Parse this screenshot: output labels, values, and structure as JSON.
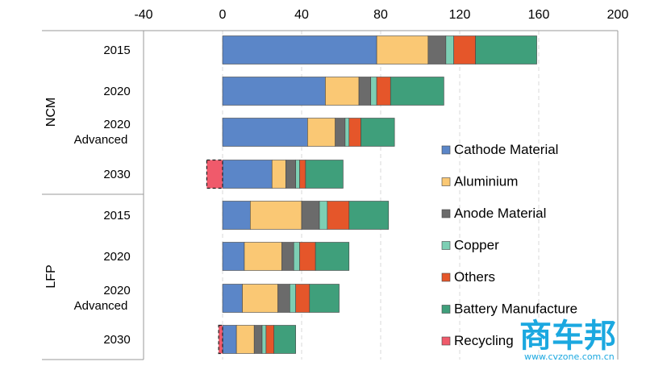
{
  "chart_data": {
    "type": "bar",
    "orientation": "horizontal",
    "stacked": true,
    "xlim": [
      -40,
      200
    ],
    "x_ticks": [
      "-40",
      "0",
      "40",
      "80",
      "120",
      "160",
      "200"
    ],
    "grid": "vertical-dashed",
    "legend_position": "right",
    "groups": [
      {
        "label": "NCM",
        "categories": [
          "2015",
          "2020",
          "2020 Advanced",
          "2030"
        ]
      },
      {
        "label": "LFP",
        "categories": [
          "2015",
          "2020",
          "2020 Advanced",
          "2030"
        ]
      }
    ],
    "series": [
      {
        "name": "Cathode Material",
        "color": "#5b86c8",
        "values": [
          78,
          52,
          43,
          25,
          14,
          11,
          10,
          7
        ]
      },
      {
        "name": "Aluminium",
        "color": "#fac874",
        "values": [
          26,
          17,
          14,
          7,
          26,
          19,
          18,
          9
        ]
      },
      {
        "name": "Anode Material",
        "color": "#6b6b6b",
        "values": [
          9,
          6,
          5,
          5,
          9,
          6,
          6,
          4
        ]
      },
      {
        "name": "Copper",
        "color": "#7dcfb4",
        "values": [
          4,
          3,
          2,
          2,
          4,
          3,
          3,
          2
        ]
      },
      {
        "name": "Others",
        "color": "#e5562a",
        "values": [
          11,
          7,
          6,
          3,
          11,
          8,
          7,
          4
        ]
      },
      {
        "name": "Battery Manufacture",
        "color": "#3f9f7b",
        "values": [
          31,
          27,
          17,
          19,
          20,
          17,
          15,
          11
        ]
      },
      {
        "name": "Recycling",
        "color": "#f05a6b",
        "values": [
          0,
          0,
          0,
          -8,
          0,
          0,
          0,
          -2
        ]
      }
    ]
  },
  "watermark": {
    "text": "商车邦",
    "url": "www.cvzone.com.cn"
  }
}
